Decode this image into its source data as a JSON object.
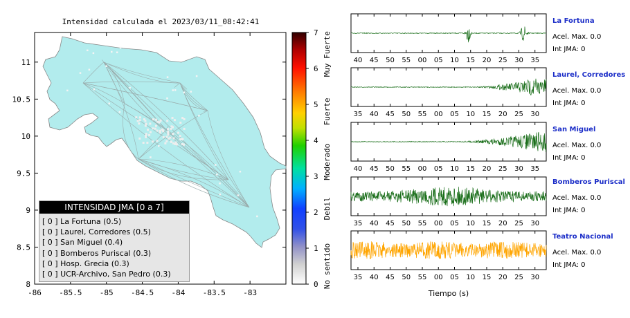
{
  "title": "Intensidad calculada el 2023/03/11_08:42:41",
  "map": {
    "x_ticks": [
      "-86",
      "-85.5",
      "-85",
      "-84.5",
      "-84",
      "-83.5",
      "-83"
    ],
    "y_ticks": [
      "11",
      "10.5",
      "10",
      "9.5",
      "9",
      "8.5",
      "8"
    ],
    "land_color": "#b2eced"
  },
  "colorbar": {
    "ticks": [
      "0",
      "1",
      "2",
      "3",
      "4",
      "5",
      "6",
      "7"
    ],
    "labels": [
      "No sentido",
      "Debil",
      "Moderado",
      "Fuerte",
      "Muy Fuerte"
    ]
  },
  "legend": {
    "title": "INTENSIDAD JMA [0 a 7]",
    "items": [
      "[ 0 ]  La Fortuna (0.5)",
      "[ 0 ]  Laurel, Corredores (0.5)",
      "[ 0 ]  San Miguel (0.4)",
      "[ 0 ]  Bomberos Puriscal (0.3)",
      "[ 0 ]  Hosp. Grecia (0.3)",
      "[ 0 ]  UCR-Archivo, San Pedro (0.3)"
    ]
  },
  "stations": [
    {
      "name": "La Fortuna",
      "accel": "Acel. Max. 0.0",
      "jma": "Int JMA: 0",
      "color": "#1a6e1a",
      "ticks": [
        "40",
        "45",
        "50",
        "55",
        "00",
        "05",
        "10",
        "15",
        "20",
        "25",
        "30",
        "35"
      ]
    },
    {
      "name": "Laurel, Corredores",
      "accel": "Acel. Max. 0.0",
      "jma": "Int JMA: 0",
      "color": "#1a6e1a",
      "ticks": [
        "35",
        "40",
        "45",
        "50",
        "55",
        "00",
        "05",
        "10",
        "15",
        "20",
        "25",
        "30"
      ]
    },
    {
      "name": "San Miguel",
      "accel": "Acel. Max. 0.0",
      "jma": "Int JMA: 0",
      "color": "#1a6e1a",
      "ticks": [
        "40",
        "45",
        "50",
        "55",
        "00",
        "05",
        "10",
        "15",
        "20",
        "25",
        "30",
        "35"
      ]
    },
    {
      "name": "Bomberos Puriscal",
      "accel": "Acel. Max. 0.0",
      "jma": "Int JMA: 0",
      "color": "#1a6e1a",
      "ticks": [
        "35",
        "40",
        "45",
        "50",
        "55",
        "00",
        "05",
        "10",
        "15",
        "20",
        "25",
        "30"
      ]
    },
    {
      "name": "Teatro Nacional",
      "accel": "Acel. Max. 0.0",
      "jma": "Int JMA: 0",
      "color": "#ffa500",
      "ticks": [
        "35",
        "40",
        "45",
        "50",
        "55",
        "00",
        "05",
        "10",
        "15",
        "20",
        "25",
        "30"
      ]
    }
  ],
  "xlabel": "Tiempo (s)",
  "chart_data": {
    "type": "line",
    "map_xlim": [
      -86,
      -82.5
    ],
    "map_ylim": [
      8,
      11.4
    ],
    "colorbar_range": [
      0,
      7
    ],
    "series": [
      {
        "name": "La Fortuna",
        "intensity": 0.5
      },
      {
        "name": "Laurel, Corredores",
        "intensity": 0.5
      },
      {
        "name": "San Miguel",
        "intensity": 0.4
      },
      {
        "name": "Bomberos Puriscal",
        "intensity": 0.3
      },
      {
        "name": "Hosp. Grecia",
        "intensity": 0.3
      },
      {
        "name": "UCR-Archivo, San Pedro",
        "intensity": 0.3
      }
    ]
  }
}
